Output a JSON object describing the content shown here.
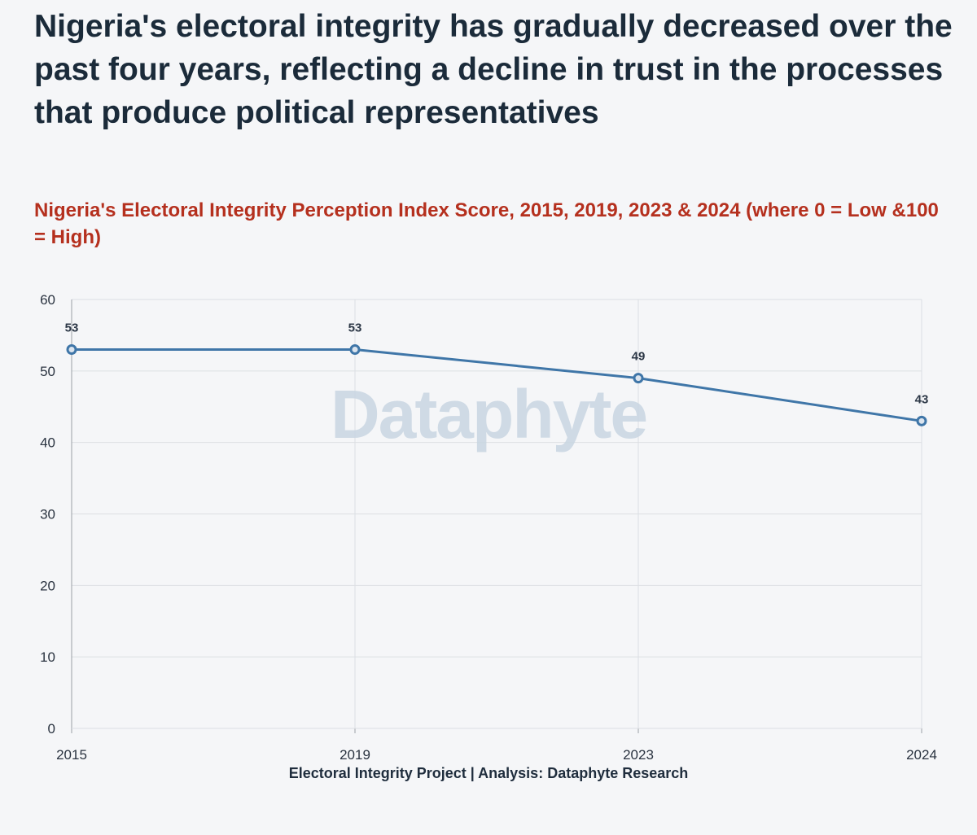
{
  "headline": "Nigeria's electoral integrity has gradually decreased over the past four years, reflecting a decline in trust in the processes that produce political representatives",
  "subtitle": "Nigeria's Electoral Integrity Perception Index Score, 2015, 2019, 2023 & 2024 (where 0 = Low &100 = High)",
  "watermark": "Dataphyte",
  "source": "Electoral Integrity Project | Analysis: Dataphyte Research",
  "colors": {
    "line": "#3f76a8",
    "headline": "#1b2b3a",
    "subtitle": "#b5301e",
    "background": "#f5f6f8"
  },
  "chart_data": {
    "type": "line",
    "categories": [
      "2015",
      "2019",
      "2023",
      "2024"
    ],
    "values": [
      53,
      53,
      49,
      43
    ],
    "data_labels": [
      "53",
      "53",
      "49",
      "43"
    ],
    "ylim": [
      0,
      60
    ],
    "yticks": [
      0,
      10,
      20,
      30,
      40,
      50,
      60
    ],
    "grid": true,
    "legend": "none"
  }
}
